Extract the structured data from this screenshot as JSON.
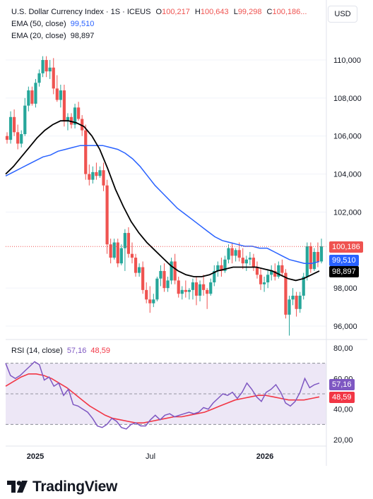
{
  "header": {
    "title": "U.S. Dollar Currency Index · 1S · ICEUS",
    "o_label": "O",
    "o_value": "100,217",
    "h_label": "H",
    "h_value": "100,643",
    "l_label": "L",
    "l_value": "99,298",
    "c_label": "C",
    "c_value": "100,186...",
    "ema50_label": "EMA (50, close)",
    "ema50_value": "99,510",
    "ema20_label": "EMA (20, close)",
    "ema20_value": "98,897",
    "rsi_label": "RSI (14, close)",
    "rsi_value": "57,16",
    "rsi_ma_value": "48,59",
    "unit": "USD"
  },
  "brand": {
    "name": "TradingView"
  },
  "colors": {
    "up": "#26a69a",
    "down": "#ef5350",
    "ema50": "#2962ff",
    "ema20": "#000000",
    "rsi": "#7e57c2",
    "rsi_ma": "#f23645",
    "rsi_band": "#ede7f6"
  },
  "chart_data": [
    {
      "type": "candlestick",
      "title": "U.S. Dollar Currency Index · 1S · ICEUS",
      "x_ticks": [
        "2025",
        "Jul",
        "2026"
      ],
      "ylim": [
        95500,
        111500
      ],
      "y_ticks": [
        "110,000",
        "108,000",
        "106,000",
        "104,000",
        "102,000",
        "98,000",
        "96,000"
      ],
      "last_price": "100,186",
      "candles": [
        [
          106.0,
          106.2,
          105.6,
          105.8
        ],
        [
          105.8,
          107.3,
          105.6,
          107.0
        ],
        [
          107.0,
          107.4,
          106.0,
          106.2
        ],
        [
          106.2,
          106.6,
          105.3,
          105.6
        ],
        [
          105.6,
          106.3,
          105.4,
          106.1
        ],
        [
          106.1,
          108.0,
          106.0,
          107.6
        ],
        [
          107.6,
          108.6,
          107.3,
          108.4
        ],
        [
          108.4,
          108.6,
          107.6,
          107.7
        ],
        [
          107.7,
          109.0,
          107.5,
          108.8
        ],
        [
          108.8,
          109.5,
          108.6,
          109.3
        ],
        [
          109.3,
          110.2,
          109.1,
          110.0
        ],
        [
          110.0,
          110.2,
          109.1,
          109.4
        ],
        [
          109.4,
          110.0,
          109.0,
          109.6
        ],
        [
          109.6,
          110.1,
          108.2,
          108.5
        ],
        [
          108.5,
          109.2,
          107.8,
          107.9
        ],
        [
          107.9,
          108.7,
          107.5,
          108.4
        ],
        [
          108.4,
          108.7,
          106.5,
          106.8
        ],
        [
          106.8,
          107.2,
          106.3,
          107.0
        ],
        [
          107.0,
          107.2,
          106.4,
          106.6
        ],
        [
          106.6,
          107.7,
          106.4,
          107.5
        ],
        [
          107.5,
          107.8,
          106.8,
          106.9
        ],
        [
          106.9,
          107.1,
          106.0,
          106.3
        ],
        [
          106.3,
          106.6,
          103.7,
          104.0
        ],
        [
          104.0,
          104.5,
          103.4,
          103.7
        ],
        [
          103.7,
          104.4,
          103.5,
          104.1
        ],
        [
          104.1,
          104.6,
          103.7,
          103.9
        ],
        [
          103.9,
          104.4,
          103.8,
          104.2
        ],
        [
          104.2,
          104.6,
          103.1,
          103.4
        ],
        [
          103.4,
          103.7,
          99.8,
          100.3
        ],
        [
          100.3,
          100.6,
          99.3,
          99.6
        ],
        [
          99.6,
          100.6,
          99.5,
          100.4
        ],
        [
          100.4,
          100.6,
          99.1,
          99.3
        ],
        [
          99.3,
          100.3,
          99.2,
          100.1
        ],
        [
          100.1,
          101.1,
          98.9,
          100.9
        ],
        [
          100.9,
          101.2,
          99.6,
          99.8
        ],
        [
          99.8,
          100.4,
          99.3,
          99.6
        ],
        [
          99.6,
          99.8,
          98.6,
          98.8
        ],
        [
          98.8,
          99.3,
          98.6,
          99.1
        ],
        [
          99.1,
          99.4,
          97.7,
          97.9
        ],
        [
          97.9,
          98.3,
          97.2,
          97.4
        ],
        [
          97.4,
          98.1,
          96.7,
          97.2
        ],
        [
          97.2,
          97.7,
          97.0,
          97.4
        ],
        [
          97.4,
          98.6,
          97.3,
          98.5
        ],
        [
          98.5,
          99.2,
          98.1,
          98.9
        ],
        [
          98.9,
          99.3,
          97.8,
          98.0
        ],
        [
          98.0,
          98.6,
          97.8,
          98.4
        ],
        [
          98.4,
          99.6,
          98.2,
          99.4
        ],
        [
          99.4,
          99.8,
          98.2,
          98.4
        ],
        [
          98.4,
          98.6,
          97.5,
          97.7
        ],
        [
          97.7,
          98.1,
          97.4,
          97.9
        ],
        [
          97.9,
          98.4,
          97.5,
          97.8
        ],
        [
          97.8,
          98.0,
          97.4,
          97.9
        ],
        [
          97.9,
          98.5,
          97.4,
          98.3
        ],
        [
          98.3,
          98.6,
          97.1,
          97.6
        ],
        [
          97.6,
          98.4,
          97.3,
          98.2
        ],
        [
          98.2,
          98.7,
          97.6,
          97.9
        ],
        [
          97.9,
          98.0,
          96.9,
          97.7
        ],
        [
          97.7,
          98.5,
          97.6,
          98.3
        ],
        [
          98.3,
          99.2,
          98.1,
          98.9
        ],
        [
          98.9,
          99.4,
          98.6,
          99.2
        ],
        [
          99.2,
          99.6,
          98.6,
          98.9
        ],
        [
          98.9,
          99.7,
          98.8,
          99.5
        ],
        [
          99.5,
          100.3,
          99.3,
          100.1
        ],
        [
          100.1,
          100.4,
          99.3,
          99.7
        ],
        [
          99.7,
          100.1,
          99.4,
          100.0
        ],
        [
          100.0,
          100.4,
          99.4,
          99.6
        ],
        [
          99.6,
          100.1,
          99.0,
          99.3
        ],
        [
          99.3,
          99.7,
          98.9,
          99.5
        ],
        [
          99.5,
          99.9,
          99.2,
          99.6
        ],
        [
          99.6,
          99.8,
          98.9,
          99.1
        ],
        [
          99.1,
          99.4,
          98.5,
          98.7
        ],
        [
          98.7,
          99.0,
          97.9,
          98.2
        ],
        [
          98.2,
          98.6,
          97.8,
          98.3
        ],
        [
          98.3,
          99.0,
          98.0,
          98.7
        ],
        [
          98.7,
          99.2,
          98.4,
          98.9
        ],
        [
          98.9,
          99.3,
          98.4,
          98.6
        ],
        [
          98.6,
          99.4,
          98.5,
          99.2
        ],
        [
          99.2,
          99.5,
          98.6,
          98.8
        ],
        [
          98.8,
          99.0,
          96.4,
          96.6
        ],
        [
          96.6,
          97.6,
          95.5,
          97.4
        ],
        [
          97.4,
          98.0,
          97.1,
          97.6
        ],
        [
          97.6,
          97.8,
          96.5,
          96.9
        ],
        [
          96.9,
          97.8,
          96.7,
          97.6
        ],
        [
          97.6,
          98.8,
          97.4,
          98.6
        ],
        [
          98.6,
          100.4,
          98.4,
          100.2
        ],
        [
          100.2,
          100.4,
          98.8,
          99.0
        ],
        [
          99.0,
          100.1,
          98.9,
          99.9
        ],
        [
          99.9,
          100.4,
          99.1,
          99.4
        ],
        [
          99.4,
          100.6,
          99.3,
          100.2
        ]
      ],
      "ema50": [
        103.9,
        104.1,
        104.3,
        104.5,
        104.7,
        104.9,
        105.0,
        105.2,
        105.3,
        105.4,
        105.5,
        105.5,
        105.5,
        105.5,
        105.4,
        105.3,
        105.1,
        104.8,
        104.4,
        103.9,
        103.4,
        103.0,
        102.6,
        102.2,
        101.9,
        101.6,
        101.3,
        101.0,
        100.7,
        100.5,
        100.4,
        100.3,
        100.2,
        100.2,
        100.1,
        100.1,
        99.9,
        99.7,
        99.5,
        99.4,
        99.3,
        99.3,
        99.4
      ],
      "ema20": [
        104.0,
        104.4,
        104.9,
        105.4,
        105.9,
        106.3,
        106.6,
        106.8,
        106.8,
        106.7,
        106.5,
        106.0,
        105.3,
        104.3,
        103.2,
        102.3,
        101.5,
        100.9,
        100.4,
        100.0,
        99.6,
        99.2,
        98.9,
        98.7,
        98.6,
        98.6,
        98.7,
        98.9,
        99.0,
        99.1,
        99.1,
        99.1,
        99.1,
        99.0,
        98.9,
        98.7,
        98.5,
        98.4,
        98.5,
        98.7,
        98.9
      ],
      "legend": [
        "EMA (50, close)",
        "EMA (20, close)"
      ]
    },
    {
      "type": "line",
      "title": "RSI (14, close)",
      "ylim": [
        15,
        85
      ],
      "y_ticks": [
        "80,00",
        "60,00",
        "40,00",
        "20,00"
      ],
      "bands": [
        70,
        50,
        30
      ],
      "series": [
        {
          "name": "RSI (14, close)",
          "values": [
            70,
            62,
            60,
            62,
            65,
            68,
            71,
            69,
            59,
            61,
            55,
            57,
            49,
            53,
            43,
            42,
            40,
            38,
            34,
            29,
            28,
            30,
            34,
            32,
            28,
            27,
            30,
            31,
            29,
            29,
            33,
            36,
            33,
            36,
            37,
            35,
            36,
            37,
            38,
            37,
            38,
            41,
            40,
            44,
            47,
            50,
            49,
            51,
            47,
            51,
            57,
            53,
            48,
            45,
            51,
            53,
            56,
            51,
            44,
            42,
            45,
            51,
            60,
            54,
            56,
            57
          ]
        },
        {
          "name": "RSI MA",
          "values": [
            55,
            58,
            61,
            63,
            63,
            62,
            60,
            57,
            54,
            50,
            46,
            42,
            39,
            36,
            34,
            33,
            32,
            31,
            31,
            32,
            33,
            34,
            35,
            35,
            36,
            37,
            38,
            40,
            42,
            44,
            46,
            47,
            48,
            49,
            49,
            48,
            47,
            46,
            46,
            46,
            47,
            48
          ]
        }
      ],
      "last_values": [
        "57,16",
        "48,59"
      ]
    }
  ]
}
